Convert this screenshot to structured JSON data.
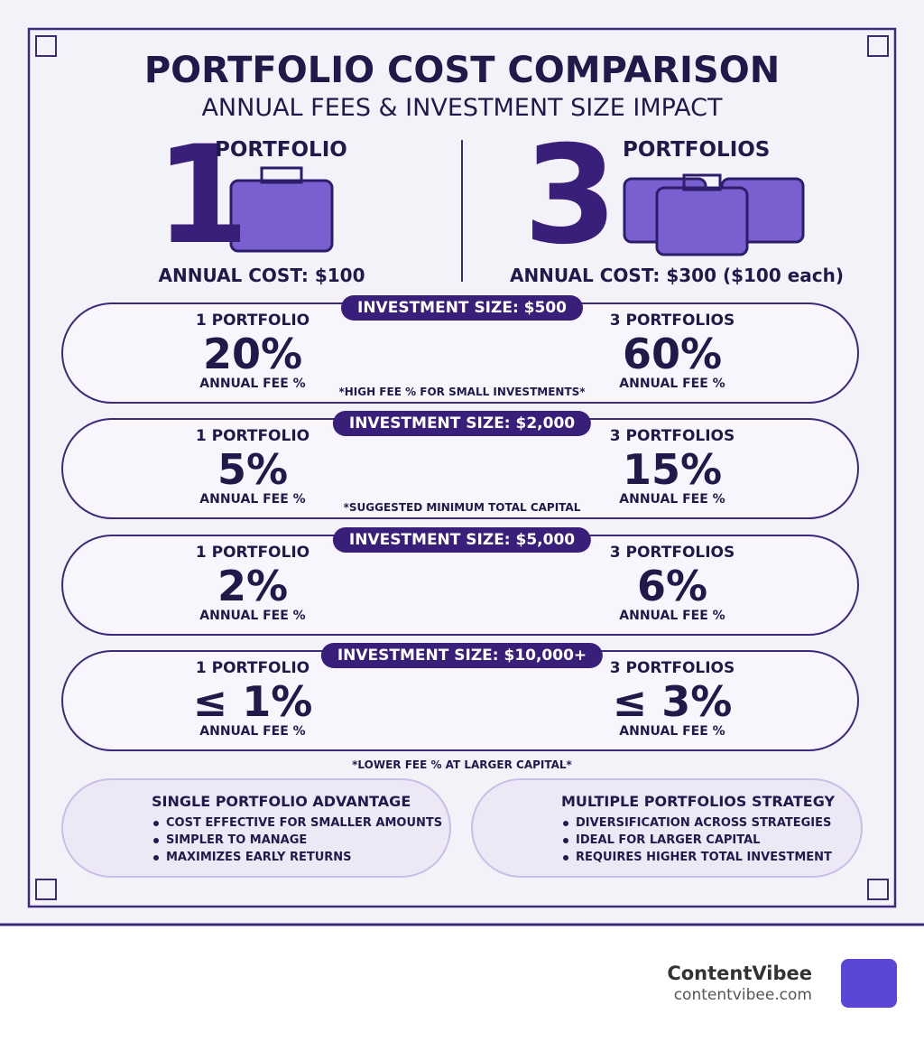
{
  "header": {
    "title": "PORTFOLIO COST COMPARISON",
    "subtitle": "ANNUAL FEES & INVESTMENT SIZE IMPACT"
  },
  "summary": {
    "left": {
      "number": "1",
      "label": "PORTFOLIO",
      "cost": "ANNUAL COST: $100"
    },
    "right": {
      "number": "3",
      "label": "PORTFOLIOS",
      "cost": "ANNUAL COST: $300 ($100 each)"
    }
  },
  "tiers": [
    {
      "heading": "INVESTMENT SIZE: $500",
      "left_label": "1 PORTFOLIO",
      "left_fee": "20%",
      "left_caption": "ANNUAL FEE %",
      "right_label": "3 PORTFOLIOS",
      "right_fee": "60%",
      "right_caption": "ANNUAL FEE %",
      "note": "*HIGH FEE % FOR SMALL INVESTMENTS*"
    },
    {
      "heading": "INVESTMENT SIZE: $2,000",
      "left_label": "1 PORTFOLIO",
      "left_fee": "5%",
      "left_caption": "ANNUAL FEE %",
      "right_label": "3 PORTFOLIOS",
      "right_fee": "15%",
      "right_caption": "ANNUAL FEE %",
      "note": "*SUGGESTED MINIMUM TOTAL CAPITAL"
    },
    {
      "heading": "INVESTMENT SIZE: $5,000",
      "left_label": "1 PORTFOLIO",
      "left_fee": "2%",
      "left_caption": "ANNUAL FEE %",
      "right_label": "3 PORTFOLIOS",
      "right_fee": "6%",
      "right_caption": "ANNUAL FEE %"
    },
    {
      "heading": "INVESTMENT SIZE: $10,000+",
      "left_label": "1 PORTFOLIO",
      "left_fee": "≤ 1%",
      "left_caption": "ANNUAL FEE %",
      "right_label": "3 PORTFOLIOS",
      "right_fee": "≤ 3%",
      "right_caption": "ANNUAL FEE %"
    }
  ],
  "tiers_footnote": "*LOWER FEE % AT LARGER CAPITAL*",
  "panels": [
    {
      "title": "SINGLE PORTFOLIO ADVANTAGE",
      "items": [
        "COST EFFECTIVE FOR SMALLER AMOUNTS",
        "SIMPLER TO MANAGE",
        "MAXIMIZES EARLY RETURNS"
      ]
    },
    {
      "title": "MULTIPLE PORTFOLIOS STRATEGY",
      "items": [
        "DIVERSIFICATION ACROSS STRATEGIES",
        "IDEAL FOR LARGER CAPITAL",
        "REQUIRES HIGHER TOTAL INVESTMENT"
      ]
    }
  ],
  "brand": {
    "name": "ContentVibee",
    "url": "contentvibee.com"
  }
}
